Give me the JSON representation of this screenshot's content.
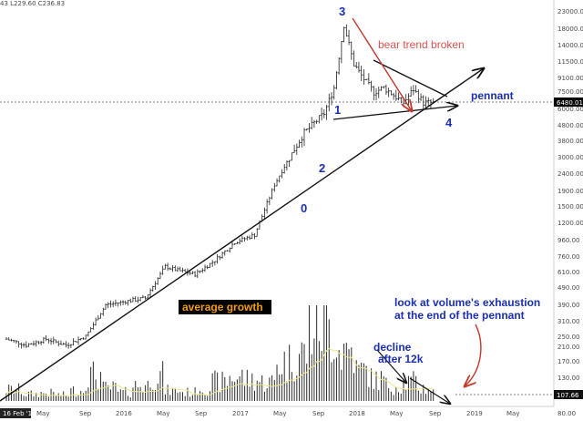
{
  "header_fragment": "43  L229.60  C236.83",
  "chart_data": {
    "type": "candlestick",
    "price_axis": {
      "scale": "log",
      "ticks": [
        "23000.00",
        "18000.00",
        "14000.00",
        "11500.00",
        "9100.00",
        "7500.00",
        "6000.00",
        "4800.00",
        "3800.00",
        "3000.00",
        "2400.00",
        "1900.00",
        "1500.00",
        "1200.00",
        "960.00",
        "760.00",
        "610.00",
        "490.00",
        "390.00",
        "310.00",
        "250.00",
        "210.00",
        "170.00",
        "130.00",
        "80.00"
      ],
      "current_price_label": "6480.01",
      "current_volume_label": "107.66"
    },
    "time_axis": {
      "ticks": [
        "16 Feb '15",
        "May",
        "Sep",
        "2016",
        "May",
        "Sep",
        "2017",
        "May",
        "Sep",
        "2018",
        "May",
        "Sep",
        "2019",
        "May"
      ]
    },
    "price_path": [
      [
        "2015-02",
        250
      ],
      [
        "2015-04",
        230
      ],
      [
        "2015-06",
        250
      ],
      [
        "2015-08",
        230
      ],
      [
        "2015-10",
        260
      ],
      [
        "2015-12",
        400
      ],
      [
        "2016-02",
        420
      ],
      [
        "2016-04",
        440
      ],
      [
        "2016-06",
        680
      ],
      [
        "2016-07",
        650
      ],
      [
        "2016-09",
        610
      ],
      [
        "2016-11",
        740
      ],
      [
        "2017-01",
        950
      ],
      [
        "2017-03",
        1050
      ],
      [
        "2017-05",
        2100
      ],
      [
        "2017-06",
        2700
      ],
      [
        "2017-08",
        4300
      ],
      [
        "2017-10",
        5600
      ],
      [
        "2017-11",
        8000
      ],
      [
        "2017-12",
        19000
      ],
      [
        "2018-01",
        11000
      ],
      [
        "2018-02",
        9000
      ],
      [
        "2018-03",
        7500
      ],
      [
        "2018-04",
        8000
      ],
      [
        "2018-06",
        6500
      ],
      [
        "2018-07",
        7800
      ],
      [
        "2018-08",
        6500
      ],
      [
        "2018-09",
        6480
      ]
    ],
    "volume_levels": [
      0.13,
      0.08,
      0.09,
      0.07,
      0.12,
      0.3,
      0.15,
      0.1,
      0.18,
      0.3,
      0.12,
      0.1,
      0.15,
      0.22,
      0.28,
      0.25,
      0.22,
      0.45,
      0.55,
      0.9,
      0.85,
      0.6,
      0.35,
      0.25,
      0.18,
      0.22,
      0.15,
      0.1
    ],
    "annotations": {
      "wave_labels": [
        "0",
        "1",
        "2",
        "3",
        "4"
      ],
      "bear_trend": "bear trend broken",
      "pennant": "pennant",
      "average_growth": "average growth",
      "volume_note_line1": "look at volume's exhaustion",
      "volume_note_line2": "at the end of the pennant",
      "decline_line1": "decline",
      "decline_line2": "after 12k"
    }
  },
  "colors": {
    "wave_label": "#1b2fb0",
    "bear_trend_text": "#d9534f",
    "bear_trend_arrow": "#c0392b",
    "average_growth_bg": "#000000",
    "average_growth_text": "#f39c12",
    "volume_ma": "#f0e68c",
    "price_marker_bg": "#000000",
    "volume_marker_bg": "#111111"
  }
}
